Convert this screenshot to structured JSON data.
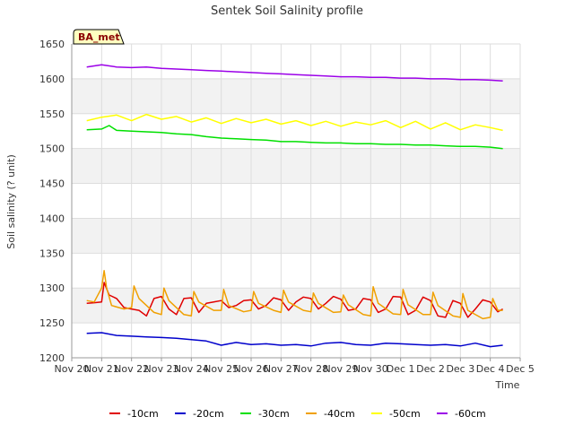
{
  "chart_data": {
    "type": "line",
    "title": "Sentek Soil Salinity profile",
    "xlabel": "Time",
    "ylabel": "Soil salinity (? unit)",
    "ylim": [
      1200,
      1650
    ],
    "xlim": [
      "2024-11-20",
      "2024-12-05"
    ],
    "yticks": [
      1200,
      1250,
      1300,
      1350,
      1400,
      1450,
      1500,
      1550,
      1600,
      1650
    ],
    "xticks": [
      {
        "date": "2024-11-20",
        "label": "Nov 20"
      },
      {
        "date": "2024-11-21",
        "label": "Nov 21"
      },
      {
        "date": "2024-11-22",
        "label": "Nov 22"
      },
      {
        "date": "2024-11-23",
        "label": "Nov 23"
      },
      {
        "date": "2024-11-24",
        "label": "Nov 24"
      },
      {
        "date": "2024-11-25",
        "label": "Nov 25"
      },
      {
        "date": "2024-11-26",
        "label": "Nov 26"
      },
      {
        "date": "2024-11-27",
        "label": "Nov 27"
      },
      {
        "date": "2024-11-28",
        "label": "Nov 28"
      },
      {
        "date": "2024-11-29",
        "label": "Nov 29"
      },
      {
        "date": "2024-11-30",
        "label": "Nov 30"
      },
      {
        "date": "2024-12-01",
        "label": "Dec 1"
      },
      {
        "date": "2024-12-02",
        "label": "Dec 2"
      },
      {
        "date": "2024-12-03",
        "label": "Dec 3"
      },
      {
        "date": "2024-12-04",
        "label": "Dec 4"
      },
      {
        "date": "2024-12-05",
        "label": "Dec 5"
      }
    ],
    "annotation": "BA_met",
    "grid": true,
    "legend_position": "bottom",
    "series": [
      {
        "name": "-10cm",
        "color": "#e00000",
        "x": [
          "2024-11-20 12:00",
          "2024-11-20 18:00",
          "2024-11-21 00:00",
          "2024-11-21 02:00",
          "2024-11-21 06:00",
          "2024-11-21 12:00",
          "2024-11-21 18:00",
          "2024-11-22 00:00",
          "2024-11-22 06:00",
          "2024-11-22 12:00",
          "2024-11-22 18:00",
          "2024-11-23 00:00",
          "2024-11-23 06:00",
          "2024-11-23 12:00",
          "2024-11-23 18:00",
          "2024-11-24 00:00",
          "2024-11-24 06:00",
          "2024-11-24 12:00",
          "2024-11-24 18:00",
          "2024-11-25 00:00",
          "2024-11-25 06:00",
          "2024-11-25 12:00",
          "2024-11-25 18:00",
          "2024-11-26 00:00",
          "2024-11-26 06:00",
          "2024-11-26 12:00",
          "2024-11-26 18:00",
          "2024-11-27 00:00",
          "2024-11-27 06:00",
          "2024-11-27 12:00",
          "2024-11-27 18:00",
          "2024-11-28 00:00",
          "2024-11-28 06:00",
          "2024-11-28 12:00",
          "2024-11-28 18:00",
          "2024-11-29 00:00",
          "2024-11-29 06:00",
          "2024-11-29 12:00",
          "2024-11-29 18:00",
          "2024-11-30 00:00",
          "2024-11-30 06:00",
          "2024-11-30 12:00",
          "2024-11-30 18:00",
          "2024-12-01 00:00",
          "2024-12-01 06:00",
          "2024-12-01 12:00",
          "2024-12-01 18:00",
          "2024-12-02 00:00",
          "2024-12-02 06:00",
          "2024-12-02 12:00",
          "2024-12-02 18:00",
          "2024-12-03 00:00",
          "2024-12-03 06:00",
          "2024-12-03 12:00",
          "2024-12-03 18:00",
          "2024-12-04 00:00",
          "2024-12-04 06:00",
          "2024-12-04 10:00"
        ],
        "values": [
          1278,
          1279,
          1280,
          1308,
          1290,
          1285,
          1272,
          1270,
          1268,
          1260,
          1285,
          1288,
          1270,
          1262,
          1285,
          1286,
          1265,
          1278,
          1280,
          1282,
          1272,
          1275,
          1282,
          1283,
          1270,
          1275,
          1286,
          1283,
          1268,
          1280,
          1287,
          1285,
          1270,
          1278,
          1288,
          1284,
          1268,
          1270,
          1285,
          1283,
          1265,
          1270,
          1288,
          1287,
          1262,
          1268,
          1287,
          1282,
          1260,
          1258,
          1282,
          1278,
          1258,
          1270,
          1283,
          1280,
          1266,
          1270
        ]
      },
      {
        "name": "-20cm",
        "color": "#0000cc",
        "x": [
          "2024-11-20 12:00",
          "2024-11-21 00:00",
          "2024-11-21 12:00",
          "2024-11-22 00:00",
          "2024-11-22 12:00",
          "2024-11-23 00:00",
          "2024-11-23 12:00",
          "2024-11-24 00:00",
          "2024-11-24 12:00",
          "2024-11-25 00:00",
          "2024-11-25 12:00",
          "2024-11-26 00:00",
          "2024-11-26 12:00",
          "2024-11-27 00:00",
          "2024-11-27 12:00",
          "2024-11-28 00:00",
          "2024-11-28 12:00",
          "2024-11-29 00:00",
          "2024-11-29 12:00",
          "2024-11-30 00:00",
          "2024-11-30 12:00",
          "2024-12-01 00:00",
          "2024-12-01 12:00",
          "2024-12-02 00:00",
          "2024-12-02 12:00",
          "2024-12-03 00:00",
          "2024-12-03 12:00",
          "2024-12-04 00:00",
          "2024-12-04 10:00"
        ],
        "values": [
          1235,
          1236,
          1232,
          1231,
          1230,
          1229,
          1228,
          1226,
          1224,
          1218,
          1222,
          1219,
          1220,
          1218,
          1219,
          1217,
          1221,
          1222,
          1219,
          1218,
          1221,
          1220,
          1219,
          1218,
          1219,
          1217,
          1221,
          1216,
          1218
        ]
      },
      {
        "name": "-30cm",
        "color": "#00e000",
        "x": [
          "2024-11-20 12:00",
          "2024-11-21 00:00",
          "2024-11-21 06:00",
          "2024-11-21 12:00",
          "2024-11-22 00:00",
          "2024-11-22 12:00",
          "2024-11-23 00:00",
          "2024-11-23 12:00",
          "2024-11-24 00:00",
          "2024-11-24 12:00",
          "2024-11-25 00:00",
          "2024-11-25 12:00",
          "2024-11-26 00:00",
          "2024-11-26 12:00",
          "2024-11-27 00:00",
          "2024-11-27 12:00",
          "2024-11-28 00:00",
          "2024-11-28 12:00",
          "2024-11-29 00:00",
          "2024-11-29 12:00",
          "2024-11-30 00:00",
          "2024-11-30 12:00",
          "2024-12-01 00:00",
          "2024-12-01 12:00",
          "2024-12-02 00:00",
          "2024-12-02 12:00",
          "2024-12-03 00:00",
          "2024-12-03 12:00",
          "2024-12-04 00:00",
          "2024-12-04 10:00"
        ],
        "values": [
          1527,
          1528,
          1533,
          1526,
          1525,
          1524,
          1523,
          1521,
          1520,
          1517,
          1515,
          1514,
          1513,
          1512,
          1510,
          1510,
          1509,
          1508,
          1508,
          1507,
          1507,
          1506,
          1506,
          1505,
          1505,
          1504,
          1503,
          1503,
          1502,
          1500
        ]
      },
      {
        "name": "-40cm",
        "color": "#f0a000",
        "x": [
          "2024-11-20 12:00",
          "2024-11-20 18:00",
          "2024-11-21 00:00",
          "2024-11-21 02:00",
          "2024-11-21 04:00",
          "2024-11-21 08:00",
          "2024-11-21 18:00",
          "2024-11-22 00:00",
          "2024-11-22 02:00",
          "2024-11-22 06:00",
          "2024-11-22 18:00",
          "2024-11-23 00:00",
          "2024-11-23 02:00",
          "2024-11-23 06:00",
          "2024-11-23 18:00",
          "2024-11-24 00:00",
          "2024-11-24 02:00",
          "2024-11-24 06:00",
          "2024-11-24 18:00",
          "2024-11-25 00:00",
          "2024-11-25 02:00",
          "2024-11-25 06:00",
          "2024-11-25 18:00",
          "2024-11-26 00:00",
          "2024-11-26 02:00",
          "2024-11-26 06:00",
          "2024-11-26 18:00",
          "2024-11-27 00:00",
          "2024-11-27 02:00",
          "2024-11-27 06:00",
          "2024-11-27 18:00",
          "2024-11-28 00:00",
          "2024-11-28 02:00",
          "2024-11-28 06:00",
          "2024-11-28 18:00",
          "2024-11-29 00:00",
          "2024-11-29 02:00",
          "2024-11-29 06:00",
          "2024-11-29 18:00",
          "2024-11-30 00:00",
          "2024-11-30 02:00",
          "2024-11-30 06:00",
          "2024-11-30 18:00",
          "2024-12-01 00:00",
          "2024-12-01 02:00",
          "2024-12-01 06:00",
          "2024-12-01 18:00",
          "2024-12-02 00:00",
          "2024-12-02 02:00",
          "2024-12-02 06:00",
          "2024-12-02 18:00",
          "2024-12-03 00:00",
          "2024-12-03 02:00",
          "2024-12-03 06:00",
          "2024-12-03 18:00",
          "2024-12-04 00:00",
          "2024-12-04 02:00",
          "2024-12-04 06:00",
          "2024-12-04 10:00"
        ],
        "values": [
          1282,
          1280,
          1300,
          1325,
          1300,
          1275,
          1270,
          1272,
          1303,
          1285,
          1265,
          1262,
          1300,
          1282,
          1262,
          1260,
          1295,
          1280,
          1268,
          1268,
          1298,
          1275,
          1266,
          1268,
          1295,
          1278,
          1268,
          1265,
          1297,
          1280,
          1268,
          1266,
          1293,
          1278,
          1265,
          1266,
          1290,
          1276,
          1262,
          1260,
          1302,
          1278,
          1263,
          1262,
          1298,
          1276,
          1262,
          1262,
          1294,
          1275,
          1260,
          1258,
          1292,
          1268,
          1256,
          1258,
          1285,
          1268,
          1268
        ]
      },
      {
        "name": "-50cm",
        "color": "#ffff00",
        "x": [
          "2024-11-20 12:00",
          "2024-11-21 00:00",
          "2024-11-21 12:00",
          "2024-11-22 00:00",
          "2024-11-22 12:00",
          "2024-11-23 00:00",
          "2024-11-23 12:00",
          "2024-11-24 00:00",
          "2024-11-24 12:00",
          "2024-11-25 00:00",
          "2024-11-25 12:00",
          "2024-11-26 00:00",
          "2024-11-26 12:00",
          "2024-11-27 00:00",
          "2024-11-27 12:00",
          "2024-11-28 00:00",
          "2024-11-28 12:00",
          "2024-11-29 00:00",
          "2024-11-29 12:00",
          "2024-11-30 00:00",
          "2024-11-30 12:00",
          "2024-12-01 00:00",
          "2024-12-01 12:00",
          "2024-12-02 00:00",
          "2024-12-02 12:00",
          "2024-12-03 00:00",
          "2024-12-03 12:00",
          "2024-12-04 00:00",
          "2024-12-04 10:00"
        ],
        "values": [
          1540,
          1545,
          1548,
          1540,
          1549,
          1542,
          1546,
          1538,
          1544,
          1536,
          1543,
          1537,
          1542,
          1535,
          1540,
          1533,
          1539,
          1532,
          1538,
          1534,
          1540,
          1530,
          1539,
          1528,
          1537,
          1527,
          1534,
          1530,
          1526
        ]
      },
      {
        "name": "-60cm",
        "color": "#9b00e8",
        "x": [
          "2024-11-20 12:00",
          "2024-11-21 00:00",
          "2024-11-21 12:00",
          "2024-11-22 00:00",
          "2024-11-22 12:00",
          "2024-11-23 00:00",
          "2024-11-23 12:00",
          "2024-11-24 00:00",
          "2024-11-24 12:00",
          "2024-11-25 00:00",
          "2024-11-25 12:00",
          "2024-11-26 00:00",
          "2024-11-26 12:00",
          "2024-11-27 00:00",
          "2024-11-27 12:00",
          "2024-11-28 00:00",
          "2024-11-28 12:00",
          "2024-11-29 00:00",
          "2024-11-29 12:00",
          "2024-11-30 00:00",
          "2024-11-30 12:00",
          "2024-12-01 00:00",
          "2024-12-01 12:00",
          "2024-12-02 00:00",
          "2024-12-02 12:00",
          "2024-12-03 00:00",
          "2024-12-03 12:00",
          "2024-12-04 00:00",
          "2024-12-04 10:00"
        ],
        "values": [
          1617,
          1620,
          1617,
          1616,
          1617,
          1615,
          1614,
          1613,
          1612,
          1611,
          1610,
          1609,
          1608,
          1607,
          1606,
          1605,
          1604,
          1603,
          1603,
          1602,
          1602,
          1601,
          1601,
          1600,
          1600,
          1599,
          1599,
          1598,
          1597
        ]
      }
    ]
  }
}
